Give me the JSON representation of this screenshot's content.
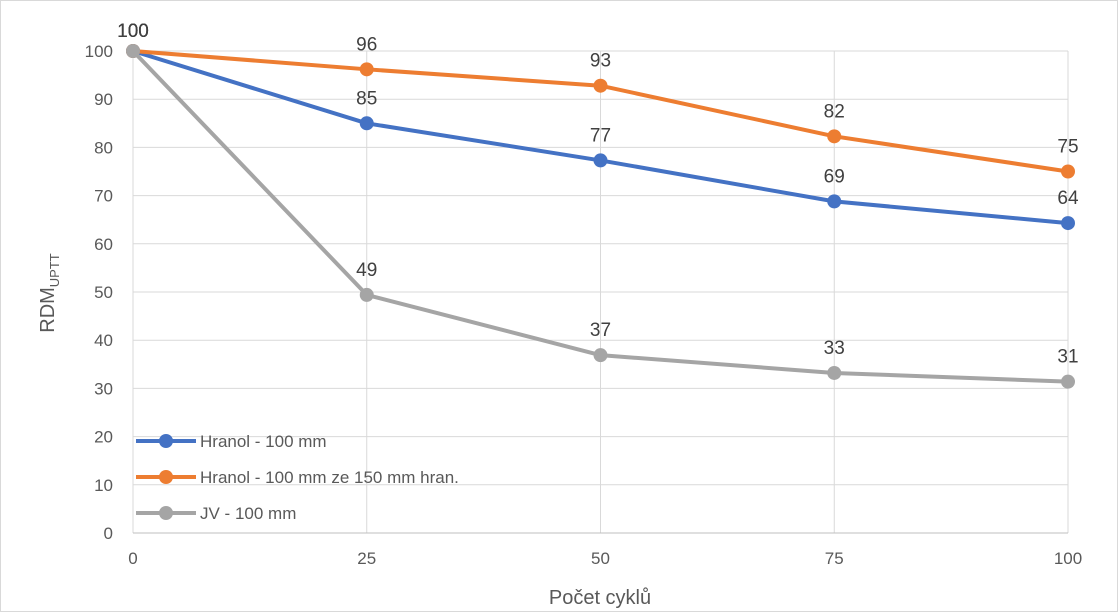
{
  "chart_data": {
    "type": "line",
    "x": [
      0,
      25,
      50,
      75,
      100
    ],
    "xlabel": "Počet cyklů",
    "ylabel_main": "RDM",
    "ylabel_sub": "UPTT",
    "xlim": [
      0,
      100
    ],
    "ylim": [
      0,
      100
    ],
    "yticks": [
      0,
      10,
      20,
      30,
      40,
      50,
      60,
      70,
      80,
      90,
      100
    ],
    "xticks": [
      0,
      25,
      50,
      75,
      100
    ],
    "grid": "horizontal and vertical",
    "legend_position": "bottom-left",
    "series": [
      {
        "name": "Hranol - 100 mm",
        "color": "#4472C4",
        "values": [
          100,
          85,
          77.3,
          68.8,
          64.3
        ],
        "labels": [
          "100",
          "85",
          "77",
          "69",
          "64"
        ]
      },
      {
        "name": "Hranol - 100 mm ze 150 mm hran.",
        "color": "#ED7D31",
        "values": [
          100,
          96.2,
          92.8,
          82.3,
          75
        ],
        "labels": [
          "100",
          "96",
          "93",
          "82",
          "75"
        ]
      },
      {
        "name": "JV - 100 mm",
        "color": "#A5A5A5",
        "values": [
          100,
          49.4,
          36.9,
          33.2,
          31.4
        ],
        "labels": [
          "100",
          "49",
          "37",
          "33",
          "31"
        ]
      }
    ]
  }
}
